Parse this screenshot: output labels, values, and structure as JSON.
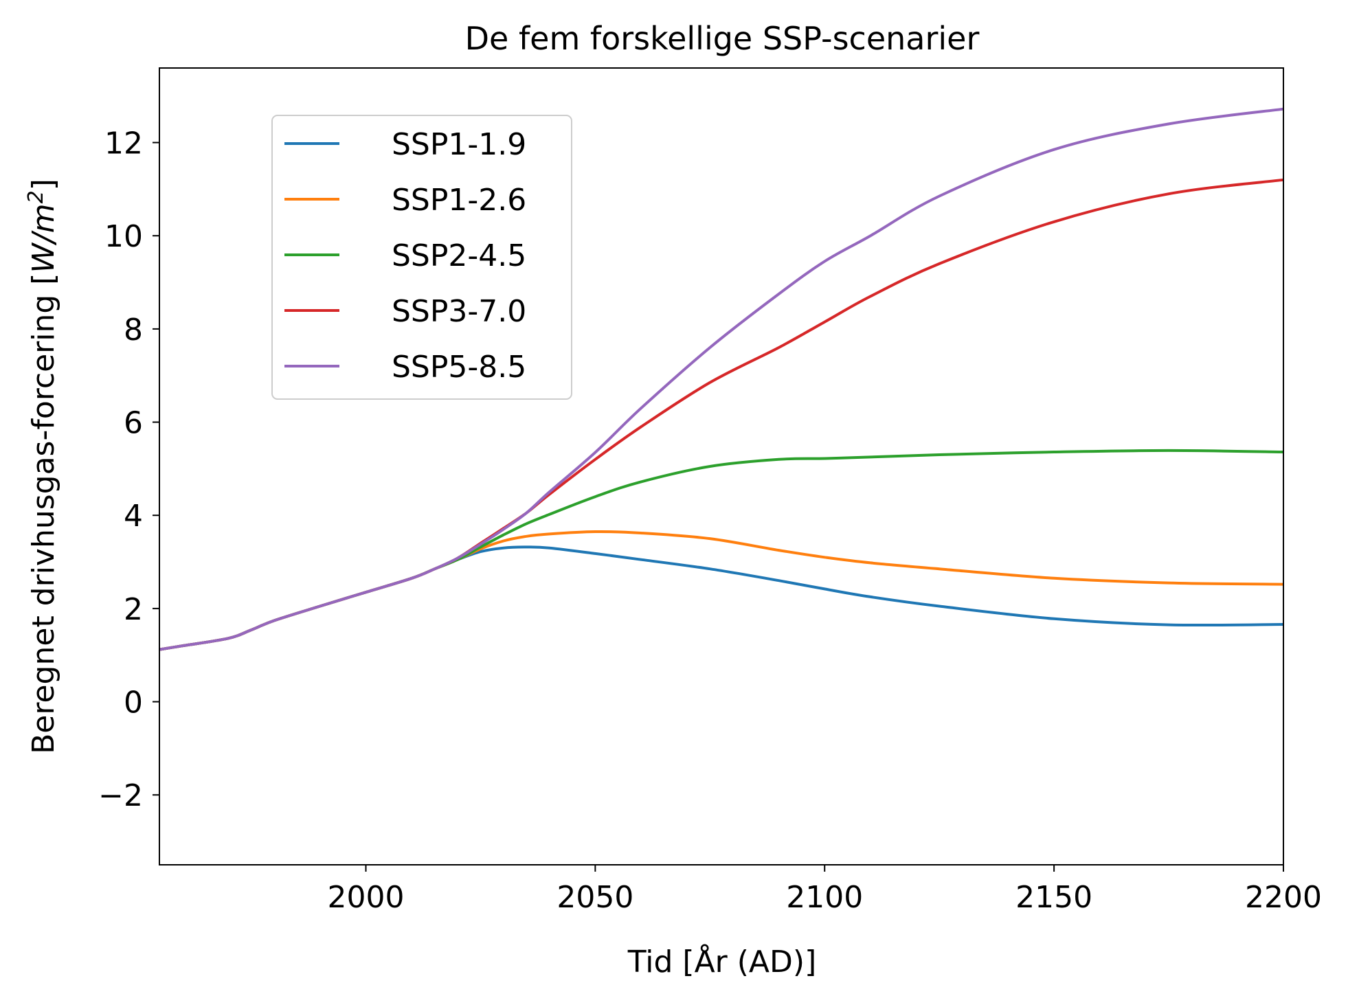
{
  "chart_data": {
    "type": "line",
    "title": "De fem forskellige SSP-scenarier",
    "xlabel": "Tid [År (AD)]",
    "ylabel": "Beregnet drivhusgas-forcering [W/m²]",
    "ylabel_parts": {
      "text": "Beregnet drivhusgas-forcering [",
      "unit_base": "W/m",
      "unit_exp": "2",
      "close": "]"
    },
    "xlim": [
      1955,
      2200
    ],
    "ylim": [
      -3.5,
      13.6
    ],
    "x_ticks": [
      2000,
      2050,
      2100,
      2150,
      2200
    ],
    "y_ticks": [
      -2,
      0,
      2,
      4,
      6,
      8,
      10,
      12
    ],
    "x_tick_labels": [
      "2000",
      "2050",
      "2100",
      "2150",
      "2200"
    ],
    "y_tick_labels": [
      "−2",
      "0",
      "2",
      "4",
      "6",
      "8",
      "10",
      "12"
    ],
    "grid": false,
    "legend_position": "upper-left",
    "x": [
      1955,
      1960,
      1970,
      1975,
      1980,
      1990,
      2000,
      2010,
      2015,
      2020,
      2025,
      2030,
      2035,
      2040,
      2050,
      2060,
      2075,
      2090,
      2100,
      2110,
      2125,
      2150,
      2175,
      2200
    ],
    "series": [
      {
        "name": "SSP1-1.9",
        "color": "#1f77b4",
        "values": [
          1.12,
          1.2,
          1.36,
          1.54,
          1.74,
          2.05,
          2.35,
          2.65,
          2.85,
          3.05,
          3.22,
          3.3,
          3.32,
          3.3,
          3.18,
          3.05,
          2.85,
          2.6,
          2.42,
          2.25,
          2.05,
          1.78,
          1.65,
          1.66
        ]
      },
      {
        "name": "SSP1-2.6",
        "color": "#ff7f0e",
        "values": [
          1.12,
          1.2,
          1.36,
          1.54,
          1.74,
          2.05,
          2.35,
          2.65,
          2.85,
          3.05,
          3.28,
          3.45,
          3.55,
          3.6,
          3.65,
          3.62,
          3.5,
          3.25,
          3.1,
          2.98,
          2.85,
          2.65,
          2.55,
          2.52
        ]
      },
      {
        "name": "SSP2-4.5",
        "color": "#2ca02c",
        "values": [
          1.12,
          1.2,
          1.36,
          1.54,
          1.74,
          2.05,
          2.35,
          2.65,
          2.85,
          3.05,
          3.32,
          3.58,
          3.82,
          4.02,
          4.4,
          4.72,
          5.05,
          5.2,
          5.22,
          5.25,
          5.3,
          5.36,
          5.39,
          5.36
        ]
      },
      {
        "name": "SSP3-7.0",
        "color": "#d62728",
        "values": [
          1.12,
          1.2,
          1.36,
          1.54,
          1.74,
          2.05,
          2.35,
          2.65,
          2.85,
          3.08,
          3.4,
          3.72,
          4.05,
          4.45,
          5.2,
          5.9,
          6.85,
          7.6,
          8.15,
          8.7,
          9.4,
          10.3,
          10.9,
          11.2
        ]
      },
      {
        "name": "SSP5-8.5",
        "color": "#9467bd",
        "values": [
          1.12,
          1.2,
          1.36,
          1.54,
          1.74,
          2.05,
          2.35,
          2.65,
          2.85,
          3.08,
          3.38,
          3.7,
          4.05,
          4.5,
          5.35,
          6.3,
          7.6,
          8.75,
          9.45,
          10.0,
          10.85,
          11.85,
          12.4,
          12.72
        ]
      }
    ]
  }
}
